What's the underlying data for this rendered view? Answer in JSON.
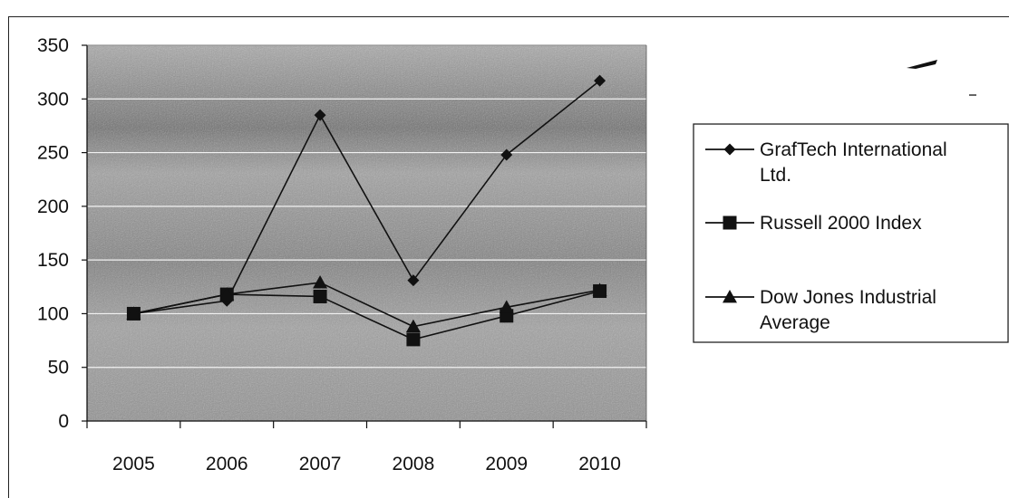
{
  "chart_data": {
    "type": "line",
    "categories": [
      "2005",
      "2006",
      "2007",
      "2008",
      "2009",
      "2010"
    ],
    "ylim": [
      0,
      350
    ],
    "y_ticks": [
      "0",
      "50",
      "100",
      "150",
      "200",
      "250",
      "300",
      "350"
    ],
    "grid": true,
    "legend_position": "right",
    "series": [
      {
        "name_lines": [
          "GrafTech International",
          "Ltd."
        ],
        "name": "GrafTech International Ltd.",
        "marker": "diamond",
        "values": [
          100,
          112,
          285,
          131,
          248,
          317
        ]
      },
      {
        "name_lines": [
          "Russell 2000 Index"
        ],
        "name": "Russell 2000 Index",
        "marker": "square",
        "values": [
          100,
          118,
          116,
          76,
          98,
          121
        ]
      },
      {
        "name_lines": [
          "Dow Jones Industrial",
          "Average"
        ],
        "name": "Dow Jones Industrial Average",
        "marker": "triangle",
        "values": [
          100,
          118,
          129,
          88,
          106,
          122
        ]
      }
    ],
    "colors": {
      "line": "#111111",
      "plot_bg": "#a9a9a9",
      "grid": "#f2f2f2"
    }
  }
}
